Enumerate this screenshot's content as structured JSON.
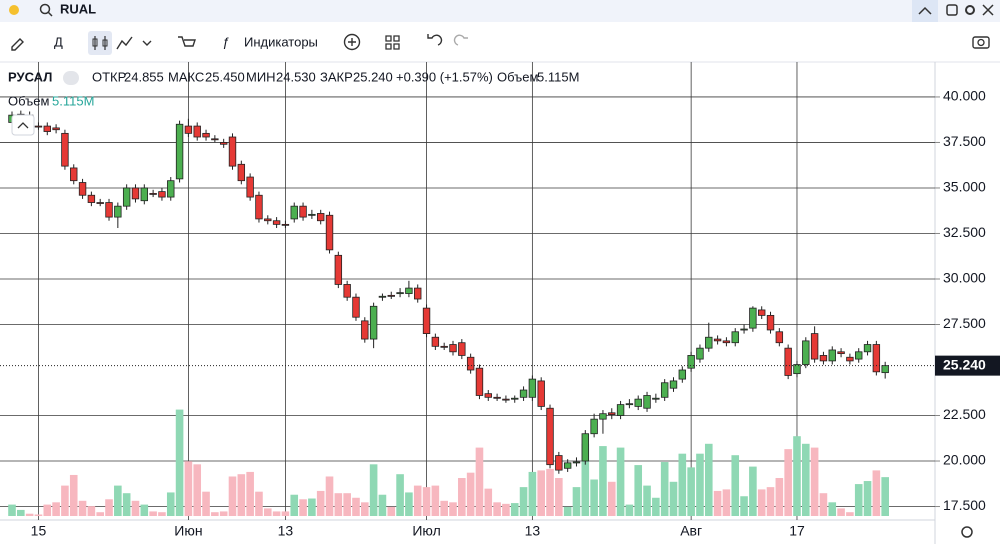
{
  "header": {
    "symbol": "RUAL",
    "interval": "Д",
    "indicators": "Индикаторы"
  },
  "legend": {
    "name": "РУСАЛ",
    "open_label": "ОТКР",
    "open": "24.855",
    "high_label": "МАКС",
    "high": "25.450",
    "low_label": "МИН",
    "low": "24.530",
    "close_label": "ЗАКР",
    "close": "25.240",
    "change": "+0.390 (+1.57%)",
    "volume_label": "Объем",
    "volume": "5.115M"
  },
  "volume_legend": {
    "label": "Объем",
    "value": "5.115M"
  },
  "chart_data": {
    "type": "candlestick",
    "categories": [
      null,
      null,
      null,
      "15",
      null,
      null,
      null,
      null,
      null,
      null,
      null,
      null,
      null,
      null,
      null,
      null,
      null,
      null,
      null,
      null,
      "Июн",
      null,
      null,
      null,
      null,
      null,
      null,
      null,
      null,
      null,
      null,
      "13",
      null,
      null,
      null,
      null,
      null,
      null,
      null,
      null,
      null,
      null,
      null,
      null,
      null,
      null,
      null,
      "Июл",
      null,
      null,
      null,
      null,
      null,
      null,
      null,
      null,
      null,
      null,
      null,
      "13",
      null,
      null,
      null,
      null,
      null,
      null,
      null,
      null,
      null,
      null,
      null,
      null,
      null,
      null,
      null,
      null,
      null,
      "Авг",
      null,
      null,
      null,
      null,
      null,
      null,
      null,
      null,
      null,
      null,
      null,
      "17",
      null,
      null,
      null,
      null,
      null,
      null,
      null,
      null,
      null,
      null
    ],
    "open": [
      38.6,
      39.0,
      39.0,
      38.4,
      38.4,
      38.3,
      38.0,
      36.1,
      35.3,
      34.6,
      34.2,
      34.2,
      33.4,
      34.0,
      35.0,
      34.3,
      34.7,
      34.8,
      34.5,
      35.5,
      38.4,
      38.4,
      38.0,
      37.7,
      37.5,
      37.8,
      36.3,
      35.6,
      34.6,
      33.3,
      33.2,
      33.0,
      33.3,
      34.0,
      33.5,
      33.6,
      33.5,
      31.3,
      29.7,
      29.0,
      27.7,
      26.7,
      29.0,
      29.1,
      29.2,
      29.2,
      29.5,
      28.4,
      26.8,
      26.3,
      26.4,
      26.5,
      25.7,
      25.1,
      23.7,
      23.5,
      23.4,
      23.4,
      23.5,
      23.5,
      24.4,
      22.9,
      20.3,
      19.6,
      19.9,
      20.0,
      21.5,
      22.3,
      22.65,
      22.5,
      23.1,
      23.0,
      22.9,
      23.4,
      23.5,
      24.0,
      24.5,
      25.1,
      25.6,
      26.2,
      26.7,
      26.6,
      26.5,
      27.2,
      27.3,
      28.3,
      28.0,
      27.1,
      26.2,
      24.8,
      25.3,
      27.0,
      25.8,
      25.5,
      26.0,
      25.7,
      25.6,
      26.0,
      26.4,
      24.855
    ],
    "high": [
      39.2,
      39.25,
      39.2,
      38.6,
      38.6,
      38.5,
      38.2,
      36.3,
      35.5,
      34.8,
      34.4,
      34.4,
      34.2,
      35.2,
      35.2,
      35.2,
      34.9,
      35.0,
      35.6,
      38.7,
      38.8,
      38.6,
      38.2,
      37.9,
      37.7,
      38.0,
      36.5,
      35.8,
      34.8,
      33.5,
      33.4,
      33.2,
      34.2,
      34.2,
      33.8,
      33.8,
      33.7,
      31.5,
      29.9,
      29.2,
      27.9,
      28.7,
      29.2,
      29.3,
      29.5,
      29.9,
      29.7,
      28.6,
      27.0,
      26.5,
      26.6,
      26.7,
      25.9,
      25.3,
      23.9,
      23.7,
      23.6,
      23.6,
      24.1,
      24.7,
      24.6,
      23.1,
      20.5,
      20.1,
      20.2,
      21.7,
      22.6,
      22.8,
      22.9,
      23.3,
      23.4,
      23.6,
      23.8,
      23.7,
      24.5,
      24.6,
      25.2,
      26.0,
      26.4,
      27.6,
      26.9,
      26.8,
      27.3,
      27.5,
      28.5,
      28.5,
      28.2,
      27.3,
      26.4,
      25.5,
      26.8,
      27.4,
      26.0,
      26.3,
      26.2,
      25.9,
      26.2,
      26.6,
      26.6,
      25.45
    ],
    "low": [
      38.4,
      38.8,
      38.1,
      38.2,
      37.9,
      38.0,
      36.0,
      35.2,
      34.4,
      34.0,
      34.0,
      33.2,
      32.8,
      33.8,
      34.2,
      34.1,
      34.5,
      34.3,
      34.3,
      35.3,
      37.8,
      37.6,
      37.6,
      37.5,
      37.2,
      36.0,
      35.2,
      34.3,
      33.1,
      33.0,
      32.8,
      32.8,
      33.1,
      33.2,
      33.3,
      33.0,
      31.4,
      29.5,
      28.8,
      27.7,
      26.5,
      26.2,
      28.8,
      28.9,
      29.0,
      29.0,
      28.7,
      26.8,
      26.1,
      26.1,
      25.8,
      25.6,
      24.8,
      23.4,
      23.3,
      23.3,
      23.2,
      23.2,
      23.3,
      23.3,
      22.8,
      19.6,
      19.3,
      19.4,
      19.7,
      19.8,
      21.3,
      21.5,
      22.3,
      22.3,
      22.9,
      22.8,
      22.7,
      23.2,
      23.3,
      23.8,
      24.3,
      24.9,
      25.4,
      26.0,
      26.4,
      26.3,
      26.3,
      27.0,
      27.1,
      27.8,
      27.0,
      26.3,
      24.5,
      24.6,
      25.1,
      25.4,
      25.3,
      25.3,
      25.7,
      25.3,
      25.4,
      25.8,
      24.7,
      24.53
    ],
    "close": [
      39.0,
      39.05,
      38.3,
      38.35,
      38.1,
      38.2,
      36.2,
      35.4,
      34.6,
      34.2,
      34.15,
      33.4,
      34.0,
      35.0,
      34.4,
      35.0,
      34.65,
      34.5,
      35.4,
      38.5,
      38.0,
      37.8,
      37.8,
      37.65,
      37.4,
      36.2,
      35.4,
      34.5,
      33.3,
      33.2,
      33.0,
      32.95,
      34.0,
      33.4,
      33.55,
      33.2,
      31.6,
      29.7,
      29.0,
      27.9,
      26.7,
      28.5,
      29.05,
      29.05,
      29.25,
      29.5,
      28.9,
      27.0,
      26.3,
      26.25,
      26.0,
      25.8,
      25.0,
      23.6,
      23.5,
      23.45,
      23.35,
      23.45,
      23.9,
      24.5,
      23.0,
      19.8,
      19.5,
      19.9,
      19.95,
      21.5,
      22.3,
      22.6,
      22.55,
      23.1,
      23.15,
      23.4,
      23.6,
      23.45,
      24.3,
      24.4,
      25.0,
      25.8,
      26.2,
      26.8,
      26.6,
      26.5,
      27.1,
      27.25,
      28.4,
      28.0,
      27.2,
      26.5,
      24.7,
      25.3,
      26.6,
      25.6,
      25.5,
      26.1,
      25.9,
      25.5,
      26.0,
      26.4,
      24.9,
      25.24
    ],
    "volume": [
      1.5,
      0.8,
      0.3,
      0.2,
      1.5,
      1.8,
      4.0,
      5.4,
      2.0,
      1.3,
      0.5,
      2.2,
      4.0,
      3.0,
      2.0,
      1.5,
      0.6,
      0.5,
      3.1,
      14.0,
      7.2,
      6.8,
      3.2,
      0.5,
      0.6,
      5.2,
      5.5,
      5.8,
      3.2,
      1.0,
      0.6,
      0.6,
      2.8,
      2.2,
      2.3,
      3.3,
      5.2,
      3.0,
      3.0,
      2.4,
      1.8,
      6.8,
      2.8,
      1.2,
      5.5,
      3.1,
      4.0,
      3.8,
      4.0,
      2.0,
      1.8,
      5.0,
      5.7,
      9.0,
      3.6,
      1.8,
      1.6,
      1.7,
      3.8,
      5.8,
      6.0,
      6.2,
      5.0,
      1.2,
      3.8,
      9.5,
      4.8,
      9.2,
      4.5,
      9.0,
      1.5,
      6.7,
      4.0,
      2.4,
      7.1,
      4.5,
      8.2,
      6.4,
      8.2,
      9.5,
      3.3,
      3.5,
      8.0,
      2.6,
      6.5,
      3.5,
      3.8,
      5.0,
      8.8,
      10.5,
      9.5,
      9.0,
      3.0,
      1.8,
      1.0,
      0.5,
      4.2,
      4.6,
      6.0,
      5.115
    ],
    "last_close_label": "25.240",
    "ylim": [
      16.76,
      41.92
    ],
    "yticks": [
      {
        "value": 40,
        "label": "40.000"
      },
      {
        "value": 37.5,
        "label": "37.500"
      },
      {
        "value": 35,
        "label": "35.000"
      },
      {
        "value": 32.5,
        "label": "32.500"
      },
      {
        "value": 30,
        "label": "30.000"
      },
      {
        "value": 27.5,
        "label": "27.500"
      },
      {
        "value": 22.5,
        "label": "22.500"
      },
      {
        "value": 20,
        "label": "20.000"
      },
      {
        "value": 17.5,
        "label": "17.500"
      }
    ],
    "up_color": "#4caf50",
    "down_color": "#e53935",
    "volume_up_color": "#8fd8b4",
    "volume_down_color": "#f7b7bf",
    "grid": true
  }
}
